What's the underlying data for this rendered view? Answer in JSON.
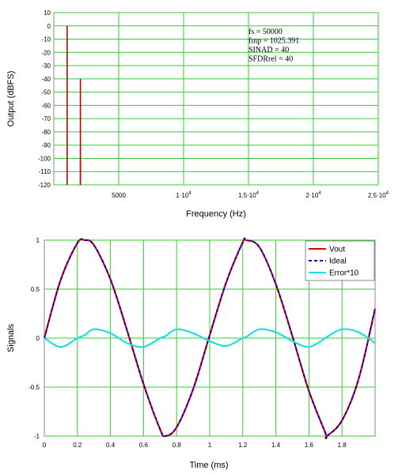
{
  "chart_data": [
    {
      "type": "bar",
      "xlabel": "Frequency (Hz)",
      "ylabel": "Output (dBFS)",
      "xlim": [
        0,
        25000
      ],
      "ylim": [
        -120,
        10
      ],
      "grid": true,
      "x_ticks": [
        {
          "value": 5000,
          "label": "5000"
        },
        {
          "value": 10000,
          "base": "1·10",
          "exp": "4"
        },
        {
          "value": 15000,
          "base": "1.5·10",
          "exp": "4"
        },
        {
          "value": 20000,
          "base": "2·10",
          "exp": "4"
        },
        {
          "value": 25000,
          "base": "2.5·10",
          "exp": "4"
        }
      ],
      "y_ticks": [
        10,
        0,
        -10,
        -20,
        -30,
        -40,
        -50,
        -60,
        -70,
        -80,
        -90,
        -100,
        -110,
        -120
      ],
      "series": [
        {
          "color": "#cc0000",
          "x": [
            1025.391,
            2050.78,
            2050.78
          ],
          "values": [
            0,
            -40,
            -100
          ]
        }
      ],
      "annotations": [
        "fs = 50000",
        "fınp = 1025.391",
        "SINAD = 40",
        "SFDRrel = 40"
      ]
    },
    {
      "type": "line",
      "xlabel": "Time (ms)",
      "ylabel": "Signals",
      "xlim": [
        0,
        2
      ],
      "ylim": [
        -1,
        1
      ],
      "grid": true,
      "legend": "top-right",
      "x_ticks": [
        "0",
        "0.2",
        "0.4",
        "0.6",
        "0.8",
        "1",
        "1.2",
        "1.4",
        "1.6",
        "1.8"
      ],
      "x_tick_values": [
        0,
        0.2,
        0.4,
        0.6,
        0.8,
        1,
        1.2,
        1.4,
        1.6,
        1.8
      ],
      "y_ticks": [
        "1",
        "0.5",
        "0",
        "-0.5",
        "-1"
      ],
      "y_tick_values": [
        1,
        0.5,
        0,
        -0.5,
        -1
      ],
      "x": [
        0,
        0.1,
        0.2,
        0.244,
        0.3,
        0.4,
        0.5,
        0.6,
        0.7,
        0.732,
        0.8,
        0.9,
        1.0,
        1.1,
        1.2,
        1.219,
        1.3,
        1.4,
        1.5,
        1.6,
        1.7,
        1.707,
        1.8,
        1.9,
        2.0
      ],
      "series": [
        {
          "name": "Vout",
          "color": "#dd0000",
          "style": "solid",
          "values": [
            0,
            0.6,
            0.97,
            1.0,
            0.95,
            0.6,
            0.08,
            -0.47,
            -0.93,
            -1.0,
            -0.91,
            -0.52,
            0.03,
            0.57,
            0.98,
            1.0,
            0.93,
            0.55,
            0.02,
            -0.54,
            -0.97,
            -1.0,
            -0.84,
            -0.42,
            0.3
          ]
        },
        {
          "name": "Ideal",
          "color": "#0000cc",
          "style": "dashed",
          "values": [
            0,
            0.6,
            0.97,
            1.0,
            0.95,
            0.6,
            0.08,
            -0.47,
            -0.93,
            -1.0,
            -0.91,
            -0.52,
            0.03,
            0.57,
            0.98,
            1.0,
            0.93,
            0.55,
            0.02,
            -0.54,
            -0.97,
            -1.0,
            -0.84,
            -0.42,
            0.3
          ]
        },
        {
          "name": "Error*10",
          "color": "#22dddd",
          "style": "solid",
          "values": [
            0,
            -0.09,
            0.0,
            0.03,
            0.09,
            0.05,
            -0.05,
            -0.09,
            0.0,
            0.02,
            0.09,
            0.05,
            -0.03,
            -0.08,
            0.0,
            0.01,
            0.09,
            0.06,
            -0.03,
            -0.09,
            0.0,
            0.01,
            0.09,
            0.06,
            -0.05
          ]
        }
      ]
    }
  ]
}
